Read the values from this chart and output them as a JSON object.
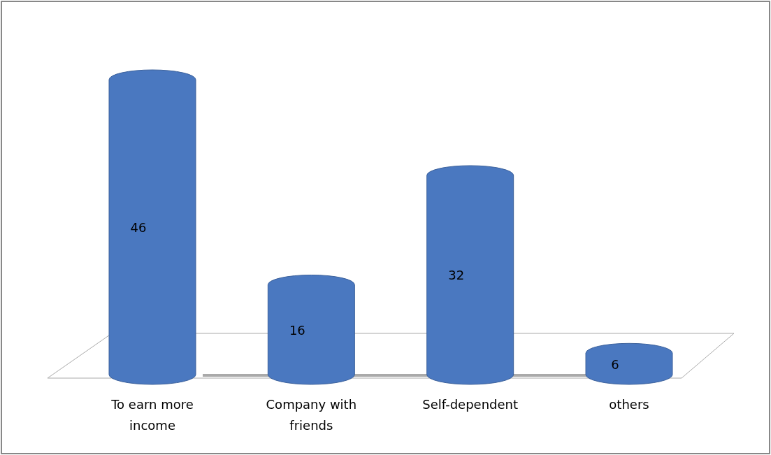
{
  "chart_data": {
    "type": "bar",
    "categories": [
      "To earn more income",
      "Company with friends",
      "Self-dependent",
      "others"
    ],
    "values": [
      46,
      16,
      32,
      6
    ],
    "color": "#4a78c0",
    "data_labels": true
  }
}
